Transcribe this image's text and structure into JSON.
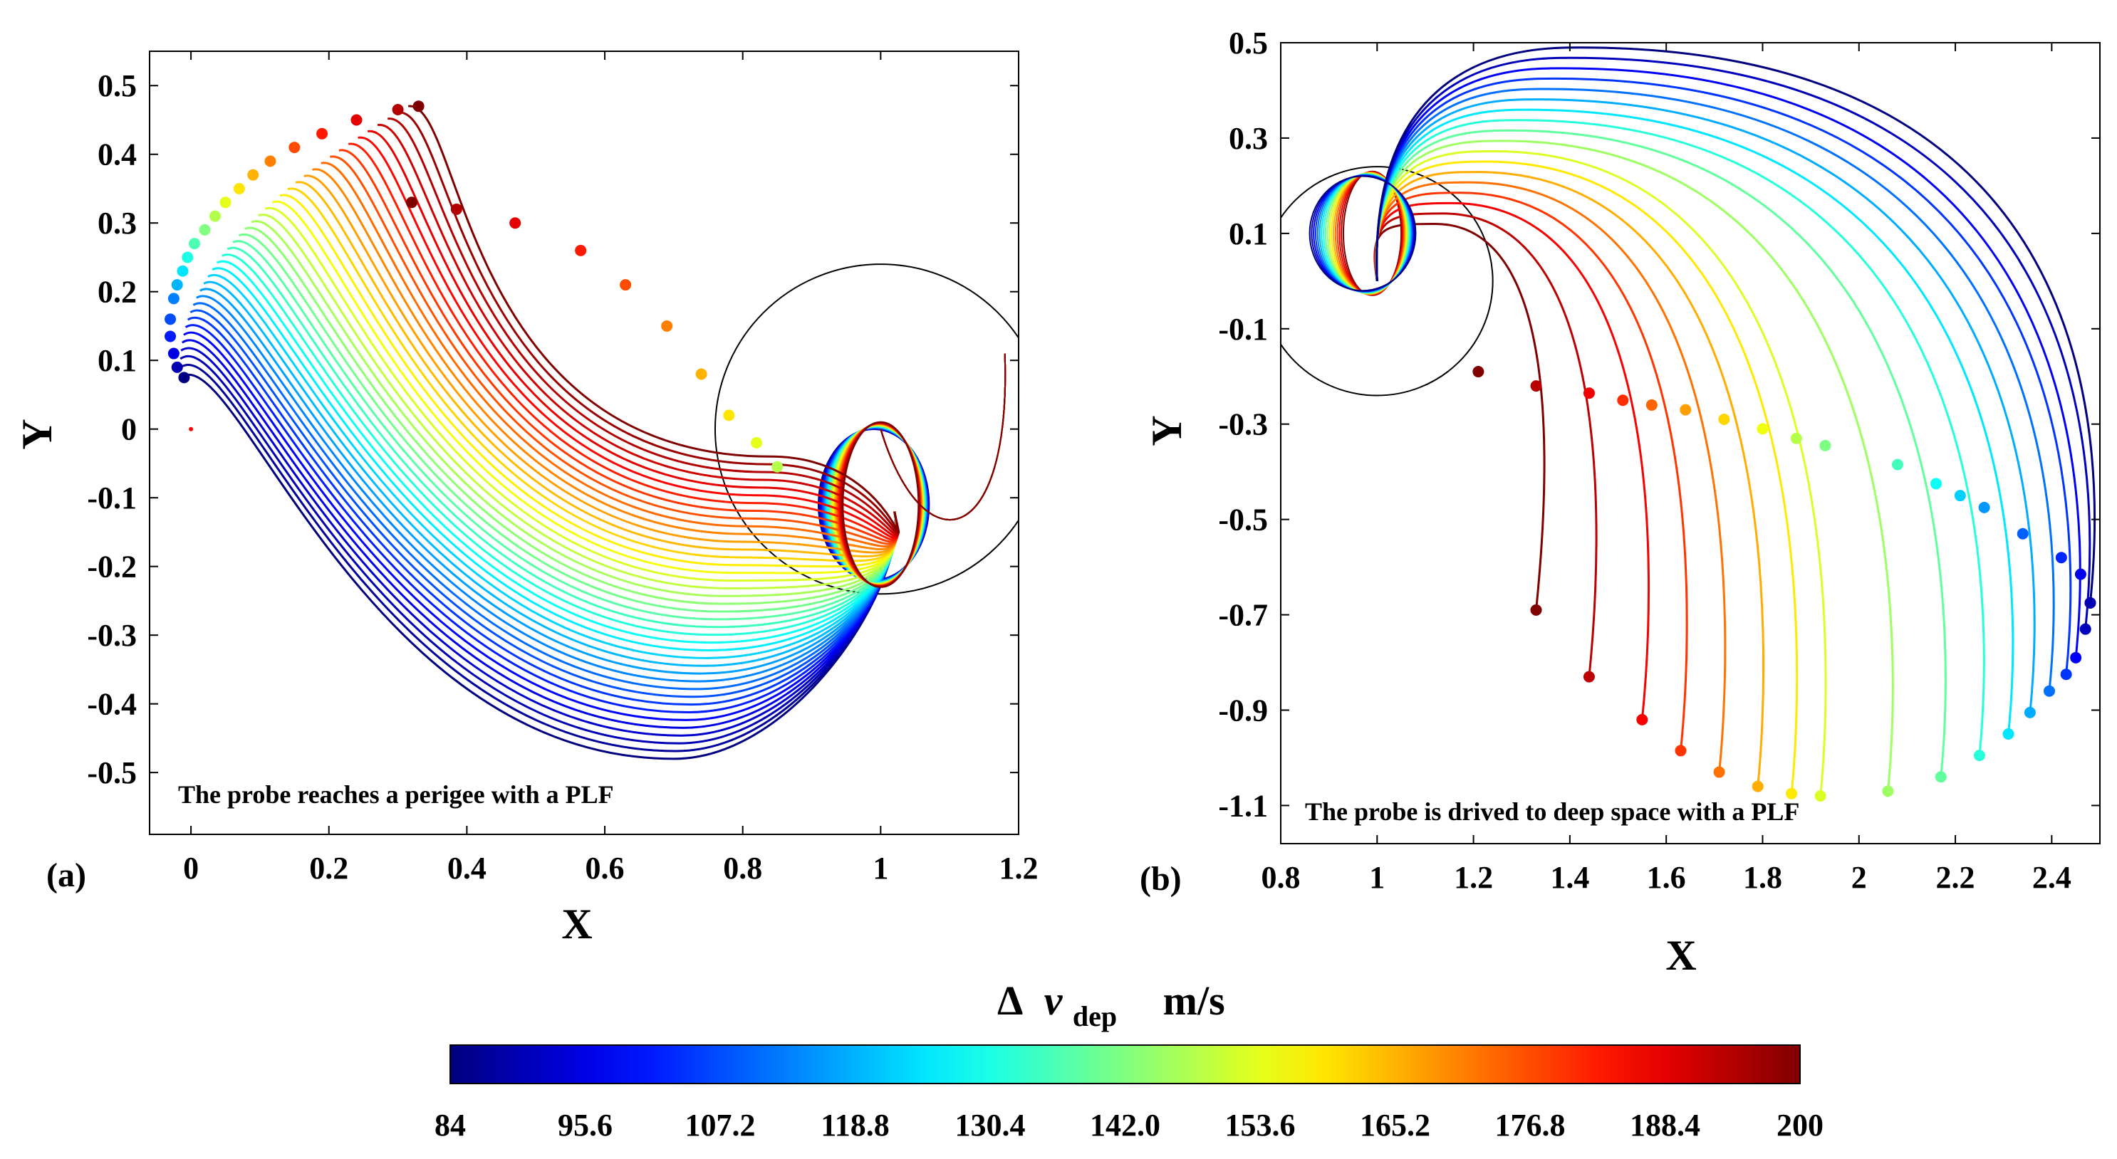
{
  "chart_data": [
    {
      "id": "a",
      "type": "line",
      "panel_label": "(a)",
      "annotation": "The probe reaches a perigee with a PLF",
      "xlabel": "X",
      "ylabel": "Y",
      "xlim": [
        -0.06,
        1.2
      ],
      "ylim": [
        -0.59,
        0.55
      ],
      "xticks": [
        0,
        0.2,
        0.4,
        0.6,
        0.8,
        1,
        1.2
      ],
      "xtick_labels": [
        "0",
        "0.2",
        "0.4",
        "0.6",
        "0.8",
        "1",
        "1.2"
      ],
      "yticks": [
        0.5,
        0.4,
        0.3,
        0.2,
        0.1,
        0,
        -0.1,
        -0.2,
        -0.3,
        -0.4,
        -0.5
      ],
      "ytick_labels": [
        "0.5",
        "0.4",
        "0.3",
        "0.2",
        "0.1",
        "0",
        "-0.1",
        "-0.2",
        "-0.3",
        "-0.4",
        "-0.5"
      ],
      "reference_circle": {
        "cx": 1.0,
        "cy": 0.0,
        "r": 0.24
      },
      "trajectory_count": 40,
      "endpoints": [
        {
          "x": 0.33,
          "y": 0.47
        },
        {
          "x": 0.3,
          "y": 0.465
        },
        {
          "x": 0.24,
          "y": 0.45
        },
        {
          "x": 0.19,
          "y": 0.43
        },
        {
          "x": 0.15,
          "y": 0.41
        },
        {
          "x": 0.115,
          "y": 0.39
        },
        {
          "x": 0.09,
          "y": 0.37
        },
        {
          "x": 0.07,
          "y": 0.35
        },
        {
          "x": 0.05,
          "y": 0.33
        },
        {
          "x": 0.035,
          "y": 0.31
        },
        {
          "x": 0.02,
          "y": 0.29
        },
        {
          "x": 0.005,
          "y": 0.27
        },
        {
          "x": -0.005,
          "y": 0.25
        },
        {
          "x": -0.012,
          "y": 0.23
        },
        {
          "x": -0.02,
          "y": 0.21
        },
        {
          "x": -0.025,
          "y": 0.19
        },
        {
          "x": -0.03,
          "y": 0.16
        },
        {
          "x": -0.03,
          "y": 0.135
        },
        {
          "x": -0.025,
          "y": 0.11
        },
        {
          "x": -0.02,
          "y": 0.09
        },
        {
          "x": -0.01,
          "y": 0.075
        }
      ],
      "dep_points": [
        {
          "x": 0.85,
          "y": -0.055
        },
        {
          "x": 0.82,
          "y": -0.02
        },
        {
          "x": 0.78,
          "y": 0.02
        },
        {
          "x": 0.74,
          "y": 0.08
        },
        {
          "x": 0.69,
          "y": 0.15
        },
        {
          "x": 0.63,
          "y": 0.21
        },
        {
          "x": 0.565,
          "y": 0.26
        },
        {
          "x": 0.47,
          "y": 0.3
        },
        {
          "x": 0.385,
          "y": 0.32
        },
        {
          "x": 0.32,
          "y": 0.33
        }
      ]
    },
    {
      "id": "b",
      "type": "line",
      "panel_label": "(b)",
      "annotation": "The probe is drived to deep space with a PLF",
      "xlabel": "X",
      "ylabel": "Y",
      "xlim": [
        0.8,
        2.5
      ],
      "ylim": [
        -1.18,
        0.5
      ],
      "xticks": [
        0.8,
        1,
        1.2,
        1.4,
        1.6,
        1.8,
        2,
        2.2,
        2.4
      ],
      "xtick_labels": [
        "0.8",
        "1",
        "1.2",
        "1.4",
        "1.6",
        "1.8",
        "2",
        "2.2",
        "2.4"
      ],
      "yticks": [
        0.5,
        0.3,
        0.1,
        -0.1,
        -0.3,
        -0.5,
        -0.7,
        -0.9,
        -1.1
      ],
      "ytick_labels": [
        "0.5",
        "0.3",
        "0.1",
        "-0.1",
        "-0.3",
        "-0.5",
        "-0.7",
        "-0.9",
        "-1.1"
      ],
      "reference_circle": {
        "cx": 1.0,
        "cy": 0.0,
        "r": 0.24
      },
      "endpoints": [
        {
          "x": 1.33,
          "y": -0.69
        },
        {
          "x": 1.44,
          "y": -0.83
        },
        {
          "x": 1.55,
          "y": -0.92
        },
        {
          "x": 1.63,
          "y": -0.985
        },
        {
          "x": 1.71,
          "y": -1.03
        },
        {
          "x": 1.79,
          "y": -1.06
        },
        {
          "x": 1.86,
          "y": -1.075
        },
        {
          "x": 1.92,
          "y": -1.08
        },
        {
          "x": 2.06,
          "y": -1.07
        },
        {
          "x": 2.17,
          "y": -1.04
        },
        {
          "x": 2.25,
          "y": -0.995
        },
        {
          "x": 2.31,
          "y": -0.95
        },
        {
          "x": 2.355,
          "y": -0.905
        },
        {
          "x": 2.395,
          "y": -0.86
        },
        {
          "x": 2.43,
          "y": -0.825
        },
        {
          "x": 2.45,
          "y": -0.79
        },
        {
          "x": 2.47,
          "y": -0.73
        },
        {
          "x": 2.48,
          "y": -0.675
        }
      ],
      "dep_points": [
        {
          "x": 1.21,
          "y": -0.19
        },
        {
          "x": 1.33,
          "y": -0.22
        },
        {
          "x": 1.44,
          "y": -0.235
        },
        {
          "x": 1.51,
          "y": -0.25
        },
        {
          "x": 1.57,
          "y": -0.26
        },
        {
          "x": 1.64,
          "y": -0.27
        },
        {
          "x": 1.72,
          "y": -0.29
        },
        {
          "x": 1.8,
          "y": -0.31
        },
        {
          "x": 1.87,
          "y": -0.33
        },
        {
          "x": 1.93,
          "y": -0.345
        },
        {
          "x": 2.08,
          "y": -0.385
        },
        {
          "x": 2.16,
          "y": -0.425
        },
        {
          "x": 2.21,
          "y": -0.45
        },
        {
          "x": 2.26,
          "y": -0.475
        },
        {
          "x": 2.34,
          "y": -0.53
        },
        {
          "x": 2.42,
          "y": -0.58
        },
        {
          "x": 2.46,
          "y": -0.615
        },
        {
          "x": 2.48,
          "y": -0.675
        }
      ]
    }
  ],
  "colorbar": {
    "title_prefix": "Δ",
    "title_var": "v",
    "title_sub": "dep",
    "title_unit": "m/s",
    "min": 84,
    "max": 200,
    "tick_labels": [
      "84",
      "95.6",
      "107.2",
      "118.8",
      "130.4",
      "142.0",
      "153.6",
      "165.2",
      "176.8",
      "188.4",
      "200"
    ],
    "colormap": "jet",
    "colors": [
      "#00008f",
      "#0000ff",
      "#0080ff",
      "#00ffff",
      "#80ff80",
      "#ffff00",
      "#ff8000",
      "#ff0000",
      "#800000"
    ]
  }
}
